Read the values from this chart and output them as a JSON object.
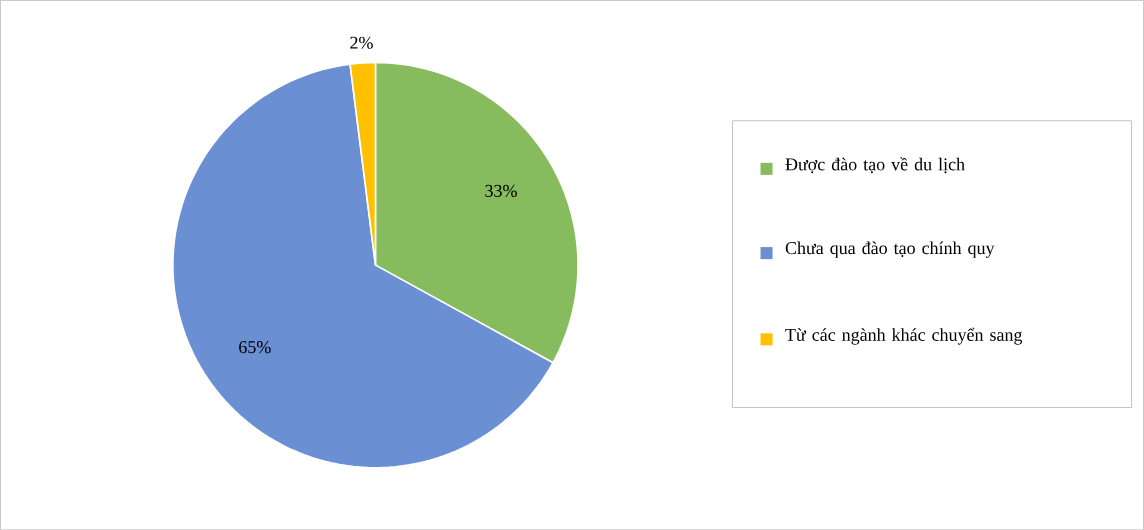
{
  "chart_data": {
    "type": "pie",
    "categories": [
      "Được đào tạo về du lịch",
      "Chưa qua đào tạo chính quy",
      "Từ các ngành khác chuyển sang"
    ],
    "values": [
      33,
      65,
      2
    ],
    "colors": [
      "#86bc5e",
      "#6a8fd3",
      "#ffc000"
    ],
    "value_labels": [
      "33%",
      "65%",
      "2%"
    ],
    "legend": "right"
  }
}
